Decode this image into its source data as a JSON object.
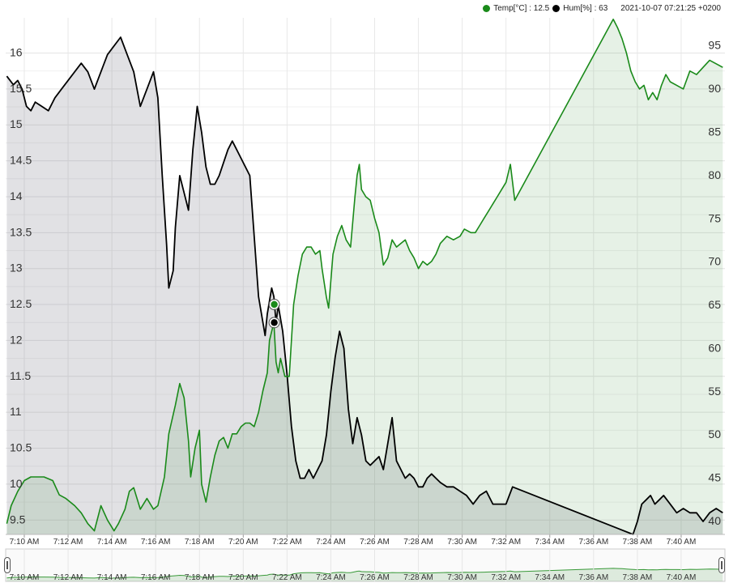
{
  "legend": {
    "temp_label": "Temp[°C] : 12.5",
    "hum_label": "Hum[%] : 63",
    "timestamp": "2021-10-07 07:21:25 +0200",
    "temp_color": "#1a8a1a",
    "hum_color": "#000000"
  },
  "navigator": {
    "left_handle": "range-start",
    "right_handle": "range-end"
  },
  "chart_data": {
    "type": "area",
    "grid": true,
    "x_ticks": [
      "7:10 AM",
      "7:12 AM",
      "7:14 AM",
      "7:16 AM",
      "7:18 AM",
      "7:20 AM",
      "7:22 AM",
      "7:24 AM",
      "7:26 AM",
      "7:28 AM",
      "7:30 AM",
      "7:32 AM",
      "7:34 AM",
      "7:36 AM",
      "7:38 AM",
      "7:40 AM"
    ],
    "y_left_ticks": [
      "9.5",
      "10",
      "10.5",
      "11",
      "11.5",
      "12",
      "12.5",
      "13",
      "13.5",
      "14",
      "14.5",
      "15",
      "15.5",
      "16"
    ],
    "y_right_ticks": [
      "40",
      "45",
      "50",
      "55",
      "60",
      "65",
      "70",
      "75",
      "80",
      "85",
      "90",
      "95"
    ],
    "ylim_left": [
      9.3,
      16.4
    ],
    "ylim_right": [
      38.5,
      97.5
    ],
    "xlim_minutes": [
      9.15,
      42.0
    ],
    "hover": {
      "time": "7:21:25",
      "temp": 12.5,
      "hum": 63
    },
    "series": [
      {
        "name": "Temp[°C]",
        "axis": "left",
        "color": "#1a8a1a",
        "x_minutes": [
          9.2,
          9.4,
          9.7,
          10.0,
          10.3,
          10.6,
          10.9,
          11.3,
          11.6,
          11.9,
          12.3,
          12.6,
          12.9,
          13.2,
          13.5,
          13.8,
          14.1,
          14.3,
          14.6,
          14.8,
          15.0,
          15.3,
          15.6,
          15.9,
          16.1,
          16.4,
          16.6,
          16.9,
          17.1,
          17.3,
          17.5,
          17.6,
          17.8,
          18.0,
          18.1,
          18.3,
          18.5,
          18.7,
          18.9,
          19.1,
          19.3,
          19.5,
          19.7,
          19.9,
          20.1,
          20.3,
          20.5,
          20.7,
          20.9,
          21.1,
          21.2,
          21.4,
          21.5,
          21.6,
          21.7,
          21.9,
          22.1,
          22.3,
          22.5,
          22.7,
          22.9,
          23.1,
          23.3,
          23.5,
          23.6,
          23.8,
          23.9,
          24.1,
          24.3,
          24.5,
          24.7,
          24.9,
          25.1,
          25.2,
          25.3,
          25.4,
          25.6,
          25.8,
          26.0,
          26.2,
          26.4,
          26.6,
          26.8,
          27.0,
          27.2,
          27.4,
          27.6,
          27.8,
          28.0,
          28.2,
          28.4,
          28.6,
          28.8,
          29.0,
          29.3,
          29.6,
          29.9,
          30.1,
          30.4,
          30.6,
          30.8,
          31.0,
          31.2,
          31.4,
          31.6,
          31.8,
          32.0,
          32.2,
          32.4,
          36.9,
          37.1,
          37.3,
          37.5,
          37.7,
          37.9,
          38.1,
          38.3,
          38.5,
          38.7,
          38.9,
          39.1,
          39.3,
          39.5,
          39.8,
          40.1,
          40.4,
          40.7,
          41.0,
          41.3,
          41.6,
          41.9
        ],
        "values": [
          9.45,
          9.7,
          9.9,
          10.05,
          10.1,
          10.1,
          10.1,
          10.05,
          9.85,
          9.8,
          9.7,
          9.6,
          9.45,
          9.35,
          9.7,
          9.5,
          9.35,
          9.45,
          9.65,
          9.9,
          9.95,
          9.65,
          9.8,
          9.65,
          9.7,
          10.1,
          10.7,
          11.1,
          11.4,
          11.2,
          10.6,
          10.1,
          10.5,
          10.75,
          10.0,
          9.75,
          10.1,
          10.4,
          10.6,
          10.65,
          10.5,
          10.7,
          10.7,
          10.8,
          10.85,
          10.85,
          10.8,
          11.0,
          11.3,
          11.55,
          12.0,
          12.25,
          11.7,
          11.55,
          11.75,
          11.5,
          11.5,
          12.5,
          12.9,
          13.2,
          13.3,
          13.3,
          13.2,
          13.25,
          13.0,
          12.6,
          12.45,
          13.2,
          13.45,
          13.6,
          13.4,
          13.3,
          14.0,
          14.3,
          14.45,
          14.1,
          14.0,
          13.95,
          13.7,
          13.5,
          13.05,
          13.15,
          13.4,
          13.3,
          13.35,
          13.4,
          13.25,
          13.15,
          13.0,
          13.1,
          13.05,
          13.1,
          13.2,
          13.35,
          13.45,
          13.4,
          13.45,
          13.55,
          13.5,
          13.5,
          13.6,
          13.7,
          13.8,
          13.9,
          14.0,
          14.1,
          14.2,
          14.45,
          13.95,
          16.47,
          16.35,
          16.2,
          16.0,
          15.75,
          15.6,
          15.5,
          15.55,
          15.35,
          15.45,
          15.35,
          15.55,
          15.7,
          15.6,
          15.55,
          15.5,
          15.75,
          15.7,
          15.8,
          15.9,
          15.85,
          15.8
        ]
      },
      {
        "name": "Hum[%]",
        "axis": "right",
        "color": "#000000",
        "x_minutes": [
          9.2,
          9.5,
          9.7,
          9.9,
          10.1,
          10.3,
          10.5,
          10.8,
          11.1,
          11.4,
          11.7,
          12.0,
          12.3,
          12.6,
          12.9,
          13.2,
          13.5,
          13.8,
          14.1,
          14.4,
          14.7,
          15.0,
          15.3,
          15.6,
          15.9,
          16.1,
          16.3,
          16.5,
          16.6,
          16.8,
          16.9,
          17.1,
          17.3,
          17.5,
          17.7,
          17.9,
          18.1,
          18.3,
          18.5,
          18.7,
          18.9,
          19.1,
          19.3,
          19.5,
          19.7,
          19.9,
          20.1,
          20.3,
          20.5,
          20.7,
          20.9,
          21.0,
          21.1,
          21.2,
          21.3,
          21.4,
          21.5,
          21.6,
          21.8,
          22.0,
          22.2,
          22.4,
          22.6,
          22.8,
          23.0,
          23.2,
          23.4,
          23.6,
          23.8,
          24.0,
          24.2,
          24.4,
          24.6,
          24.8,
          25.0,
          25.2,
          25.4,
          25.6,
          25.8,
          26.0,
          26.2,
          26.4,
          26.6,
          26.8,
          27.0,
          27.2,
          27.4,
          27.6,
          27.8,
          28.0,
          28.2,
          28.4,
          28.6,
          28.8,
          29.0,
          29.3,
          29.6,
          29.9,
          30.2,
          30.5,
          30.8,
          31.1,
          31.4,
          31.7,
          32.0,
          32.3,
          37.8,
          38.0,
          38.2,
          38.4,
          38.6,
          38.8,
          39.0,
          39.2,
          39.5,
          39.8,
          40.1,
          40.4,
          40.7,
          41.0,
          41.3,
          41.6,
          41.9
        ],
        "values": [
          91.5,
          90.5,
          91.0,
          90.0,
          88.0,
          87.5,
          88.5,
          88.0,
          87.5,
          89.0,
          90.0,
          91.0,
          92.0,
          93.0,
          92.0,
          90.0,
          92.0,
          94.0,
          95.0,
          96.0,
          94.0,
          92.0,
          88.0,
          90.0,
          92.0,
          89.0,
          80.0,
          72.0,
          67.0,
          69.0,
          74.0,
          80.0,
          78.0,
          76.0,
          83.0,
          88.0,
          85.0,
          81.0,
          79.0,
          79.0,
          80.0,
          81.5,
          83.0,
          84.0,
          83.0,
          82.0,
          81.0,
          80.0,
          73.0,
          66.0,
          63.0,
          61.5,
          64.0,
          65.5,
          67.0,
          66.0,
          63.0,
          65.0,
          62.0,
          57.0,
          51.0,
          47.0,
          45.0,
          45.0,
          46.0,
          45.0,
          46.0,
          47.0,
          50.0,
          55.0,
          59.0,
          62.0,
          60.0,
          53.0,
          49.0,
          52.0,
          50.0,
          47.0,
          46.5,
          47.0,
          47.5,
          46.0,
          49.0,
          52.0,
          47.0,
          46.0,
          45.0,
          45.5,
          45.0,
          44.0,
          44.0,
          45.0,
          45.5,
          45.0,
          44.5,
          44.0,
          44.0,
          43.5,
          43.0,
          42.0,
          43.0,
          43.5,
          42.0,
          42.0,
          42.0,
          44.0,
          38.5,
          40.0,
          42.0,
          42.5,
          43.0,
          42.0,
          42.5,
          43.0,
          42.0,
          41.0,
          41.5,
          41.0,
          41.0,
          40.0,
          41.0,
          41.5,
          41.0
        ]
      }
    ]
  }
}
